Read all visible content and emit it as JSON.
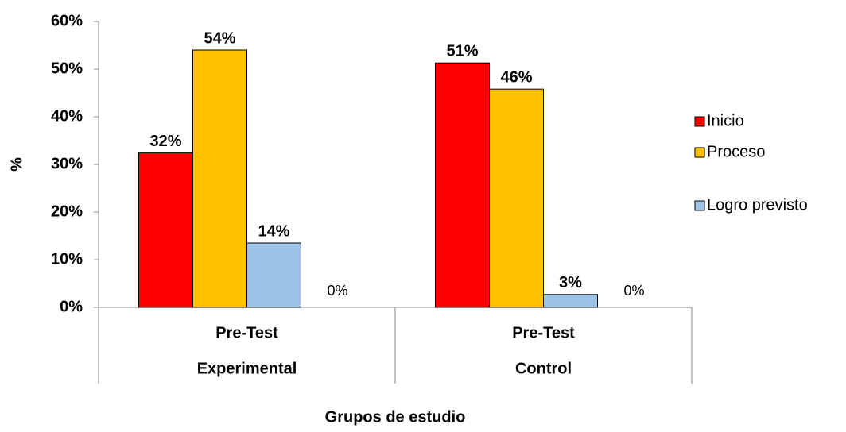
{
  "chart_data": {
    "type": "bar",
    "categories": [
      [
        "Pre-Test",
        "Experimental"
      ],
      [
        "Pre-Test",
        "Control"
      ]
    ],
    "series": [
      {
        "name": "Inicio",
        "color": "#ff0000",
        "values": [
          32.4,
          51.3
        ],
        "value_labels": [
          "32%",
          "51%"
        ]
      },
      {
        "name": "Proceso",
        "color": "#ffc000",
        "values": [
          54,
          45.8
        ],
        "value_labels": [
          "54%",
          "46%"
        ]
      },
      {
        "name": "Logro previsto",
        "color": "#9dc3e6",
        "values": [
          13.5,
          2.7
        ],
        "value_labels": [
          "14%",
          "3%"
        ]
      },
      {
        "color": "none",
        "values": [
          0,
          0
        ],
        "value_labels": [
          "0%",
          "0%"
        ]
      }
    ],
    "ylim": [
      0,
      60
    ],
    "yticks": [
      {
        "value": 0,
        "label": "0%"
      },
      {
        "value": 10,
        "label": "10%"
      },
      {
        "value": 20,
        "label": "20%"
      },
      {
        "value": 30,
        "label": "30%"
      },
      {
        "value": 40,
        "label": "40%"
      },
      {
        "value": 50,
        "label": "50%"
      },
      {
        "value": 60,
        "label": "60%"
      }
    ],
    "ylabel": "%",
    "xlabel": "Grupos  de  estudio",
    "legend": "right"
  }
}
